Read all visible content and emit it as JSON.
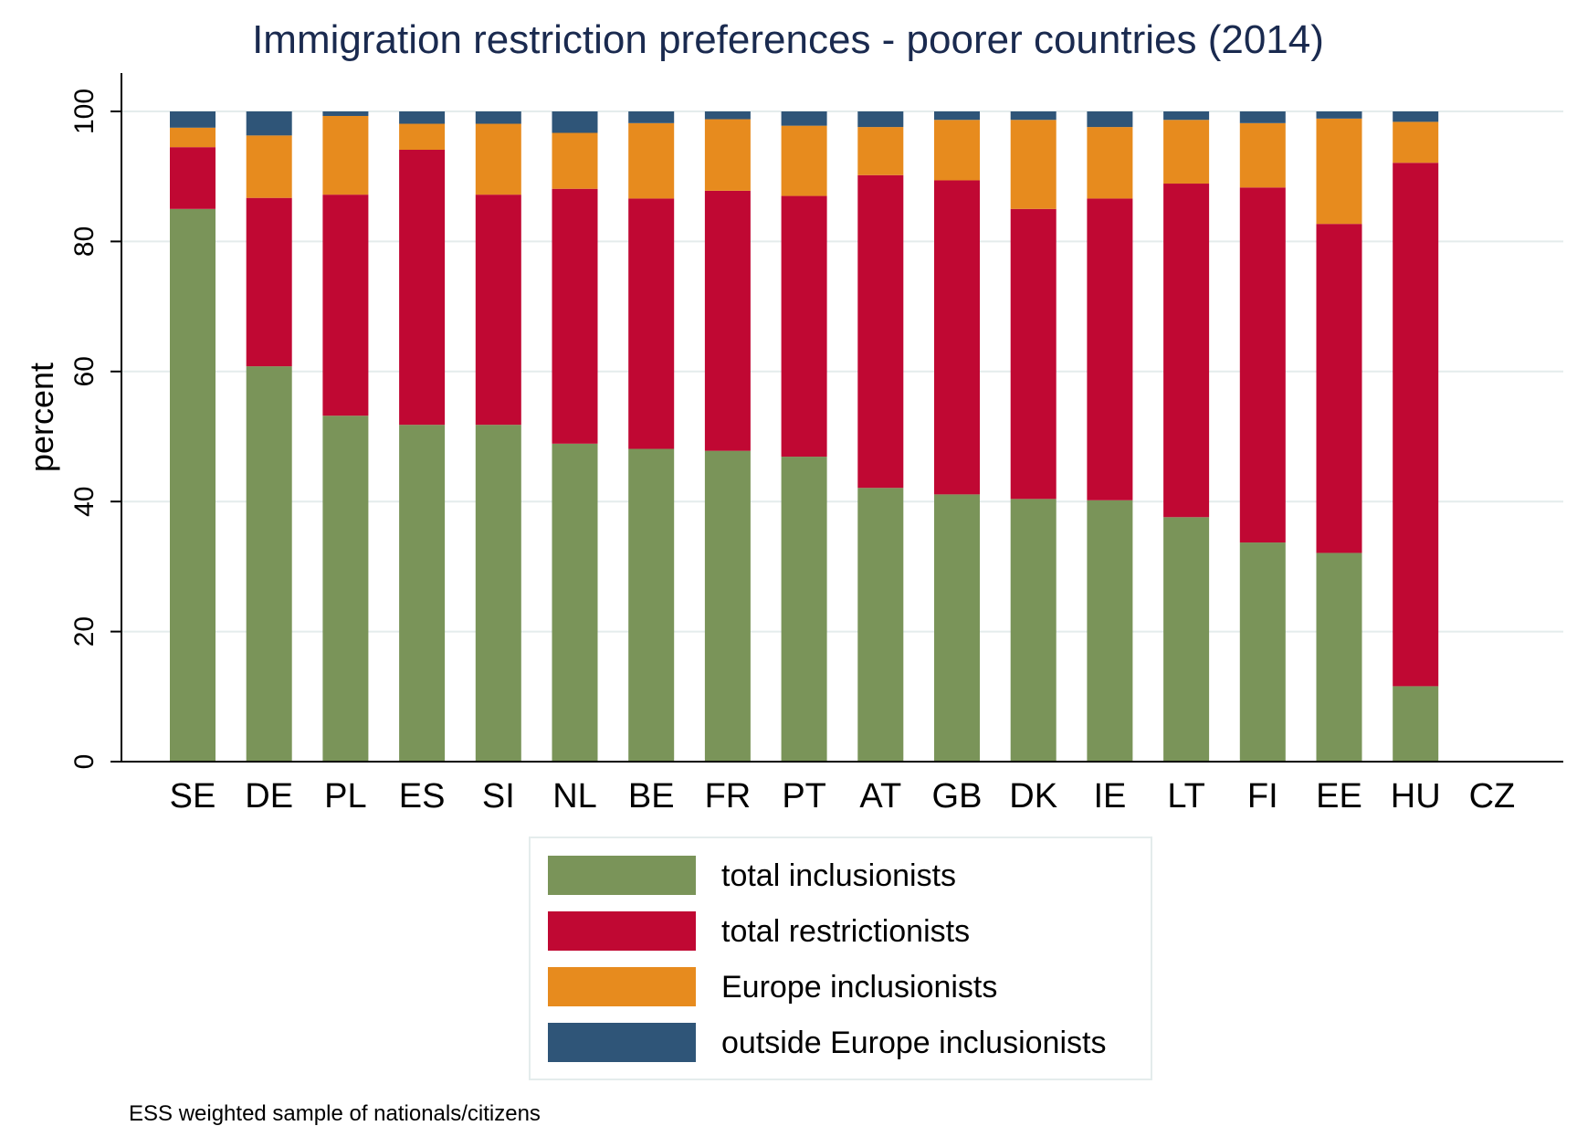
{
  "chart_data": {
    "type": "bar",
    "stacked": true,
    "title": "Immigration restriction preferences - poorer countries (2014)",
    "xlabel": "",
    "ylabel": "percent",
    "ylim": [
      0,
      100
    ],
    "yticks": [
      0,
      20,
      40,
      60,
      80,
      100
    ],
    "grid": true,
    "legend_position": "bottom",
    "note": "ESS weighted sample of nationals/citizens",
    "categories": [
      "SE",
      "DE",
      "PL",
      "ES",
      "SI",
      "NL",
      "BE",
      "FR",
      "PT",
      "AT",
      "GB",
      "DK",
      "IE",
      "LT",
      "FI",
      "EE",
      "HU",
      "CZ"
    ],
    "series": [
      {
        "name": "total inclusionists",
        "color": "#7a9459",
        "values": [
          85,
          60.8,
          53.2,
          51.8,
          51.8,
          48.9,
          48.1,
          47.8,
          46.9,
          42.1,
          41.1,
          40.4,
          40.2,
          37.6,
          33.7,
          32.1,
          11.6,
          null
        ]
      },
      {
        "name": "total restrictionists",
        "color": "#c00833",
        "values": [
          9.5,
          25.9,
          34.0,
          42.3,
          35.4,
          39.2,
          38.5,
          40.0,
          40.1,
          48.1,
          48.3,
          44.6,
          46.4,
          51.3,
          54.6,
          50.6,
          80.5,
          null
        ]
      },
      {
        "name": "Europe inclusionists",
        "color": "#e78b1e",
        "values": [
          3.0,
          9.6,
          12.1,
          4.0,
          10.9,
          8.6,
          11.6,
          11.0,
          10.8,
          7.4,
          9.3,
          13.7,
          11.0,
          9.8,
          9.9,
          16.2,
          6.3,
          null
        ]
      },
      {
        "name": "outside Europe inclusionists",
        "color": "#2f5578",
        "values": [
          2.5,
          3.7,
          0.7,
          1.9,
          1.9,
          3.3,
          1.8,
          1.2,
          2.2,
          2.4,
          1.3,
          1.3,
          2.4,
          1.3,
          1.8,
          1.1,
          1.6,
          null
        ]
      }
    ]
  }
}
